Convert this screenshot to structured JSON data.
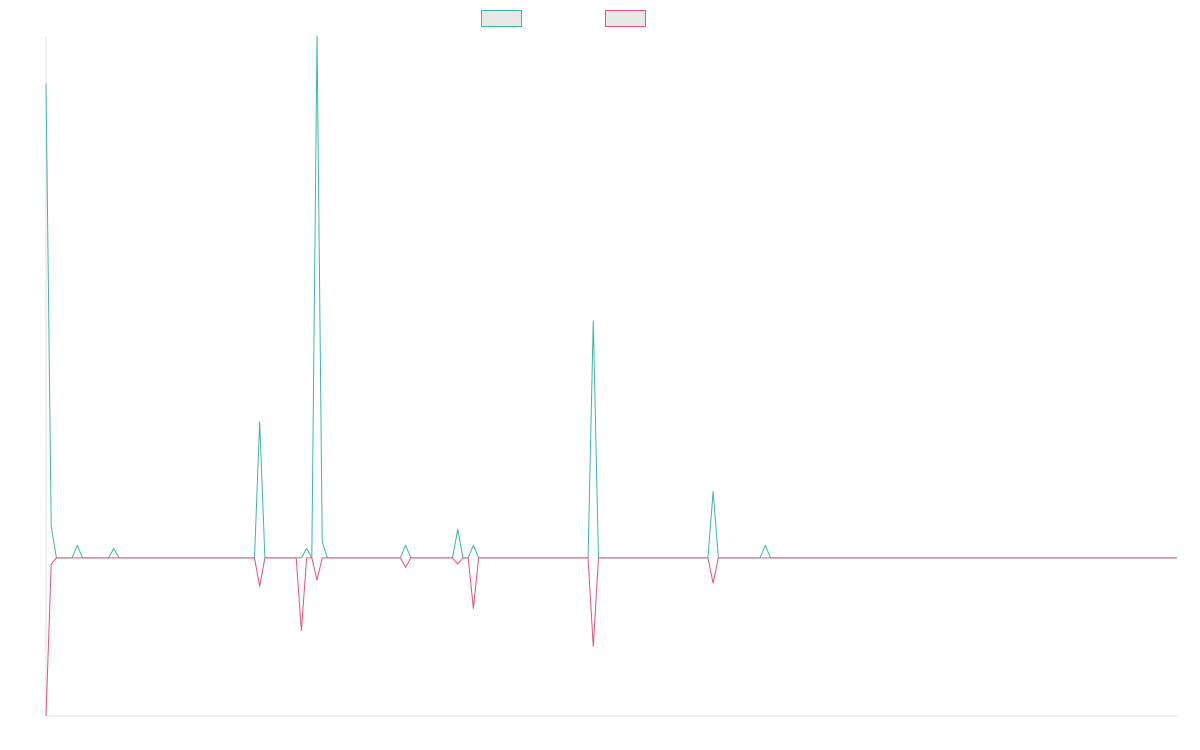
{
  "chart_data": {
    "type": "line",
    "title": "",
    "xlabel": "",
    "ylabel": "",
    "grid": false,
    "legend_position": "top-center",
    "xlim": [
      0,
      224
    ],
    "ylim": [
      -0.5,
      1.65
    ],
    "series": [
      {
        "color": "#3bb8a5",
        "legend_fill": "#e8e8e8",
        "values": [
          1.5,
          0.1,
          0,
          0,
          0,
          0,
          0.04,
          0,
          0,
          0,
          0,
          0,
          0,
          0.03,
          0,
          0,
          0,
          0,
          0,
          0,
          0,
          0,
          0,
          0,
          0,
          0,
          0,
          0,
          0,
          0,
          0,
          0,
          0,
          0,
          0,
          0,
          0,
          0,
          0,
          0,
          0,
          0.43,
          0,
          0,
          0,
          0,
          0,
          0,
          0,
          0,
          0.03,
          0,
          1.65,
          0.05,
          0,
          0,
          0,
          0,
          0,
          0,
          0,
          0,
          0,
          0,
          0,
          0,
          0,
          0,
          0,
          0.04,
          0,
          0,
          0,
          0,
          0,
          0,
          0,
          0,
          0,
          0.09,
          0,
          0,
          0.04,
          0,
          0,
          0,
          0,
          0,
          0,
          0,
          0,
          0,
          0,
          0,
          0,
          0,
          0,
          0,
          0,
          0,
          0,
          0,
          0,
          0,
          0,
          0.75,
          0,
          0,
          0,
          0,
          0,
          0,
          0,
          0,
          0,
          0,
          0,
          0,
          0,
          0,
          0,
          0,
          0,
          0,
          0,
          0,
          0,
          0,
          0.21,
          0,
          0,
          0,
          0,
          0,
          0,
          0,
          0,
          0,
          0.04,
          0,
          0,
          0,
          0,
          0,
          0,
          0,
          0,
          0,
          0,
          0,
          0,
          0,
          0,
          0,
          0,
          0,
          0,
          0,
          0,
          0,
          0,
          0,
          0,
          0,
          0,
          0,
          0,
          0,
          0,
          0,
          0,
          0,
          0,
          0,
          0,
          0,
          0,
          0,
          0,
          0,
          0,
          0,
          0,
          0,
          0,
          0,
          0,
          0,
          0,
          0,
          0,
          0,
          0,
          0,
          0,
          0,
          0,
          0,
          0,
          0,
          0,
          0,
          0,
          0,
          0,
          0,
          0,
          0,
          0,
          0,
          0,
          0,
          0,
          0,
          0,
          0,
          0,
          0
        ]
      },
      {
        "color": "#ee4e77",
        "legend_fill": "#e8e8e8",
        "values": [
          -0.5,
          -0.02,
          0,
          0,
          0,
          0,
          0,
          0,
          0,
          0,
          0,
          0,
          0,
          0,
          0,
          0,
          0,
          0,
          0,
          0,
          0,
          0,
          0,
          0,
          0,
          0,
          0,
          0,
          0,
          0,
          0,
          0,
          0,
          0,
          0,
          0,
          0,
          0,
          0,
          0,
          0,
          -0.09,
          0,
          0,
          0,
          0,
          0,
          0,
          0,
          -0.23,
          0,
          0,
          -0.07,
          0,
          0,
          0,
          0,
          0,
          0,
          0,
          0,
          0,
          0,
          0,
          0,
          0,
          0,
          0,
          0,
          -0.03,
          0,
          0,
          0,
          0,
          0,
          0,
          0,
          0,
          0,
          -0.02,
          0,
          0,
          -0.16,
          0,
          0,
          0,
          0,
          0,
          0,
          0,
          0,
          0,
          0,
          0,
          0,
          0,
          0,
          0,
          0,
          0,
          0,
          0,
          0,
          0,
          0,
          -0.28,
          0,
          0,
          0,
          0,
          0,
          0,
          0,
          0,
          0,
          0,
          0,
          0,
          0,
          0,
          0,
          0,
          0,
          0,
          0,
          0,
          0,
          0,
          -0.08,
          0,
          0,
          0,
          0,
          0,
          0,
          0,
          0,
          0,
          0,
          0,
          0,
          0,
          0,
          0,
          0,
          0,
          0,
          0,
          0,
          0,
          0,
          0,
          0,
          0,
          0,
          0,
          0,
          0,
          0,
          0,
          0,
          0,
          0,
          0,
          0,
          0,
          0,
          0,
          0,
          0,
          0,
          0,
          0,
          0,
          0,
          0,
          0,
          0,
          0,
          0,
          0,
          0,
          0,
          0,
          0,
          0,
          0,
          0,
          0,
          0,
          0,
          0,
          0,
          0,
          0,
          0,
          0,
          0,
          0,
          0,
          0,
          0,
          0,
          0,
          0,
          0,
          0,
          0,
          0,
          0,
          0,
          0,
          0,
          0,
          0,
          0,
          0,
          0
        ]
      }
    ],
    "axis_color": "#e0e0e0"
  }
}
